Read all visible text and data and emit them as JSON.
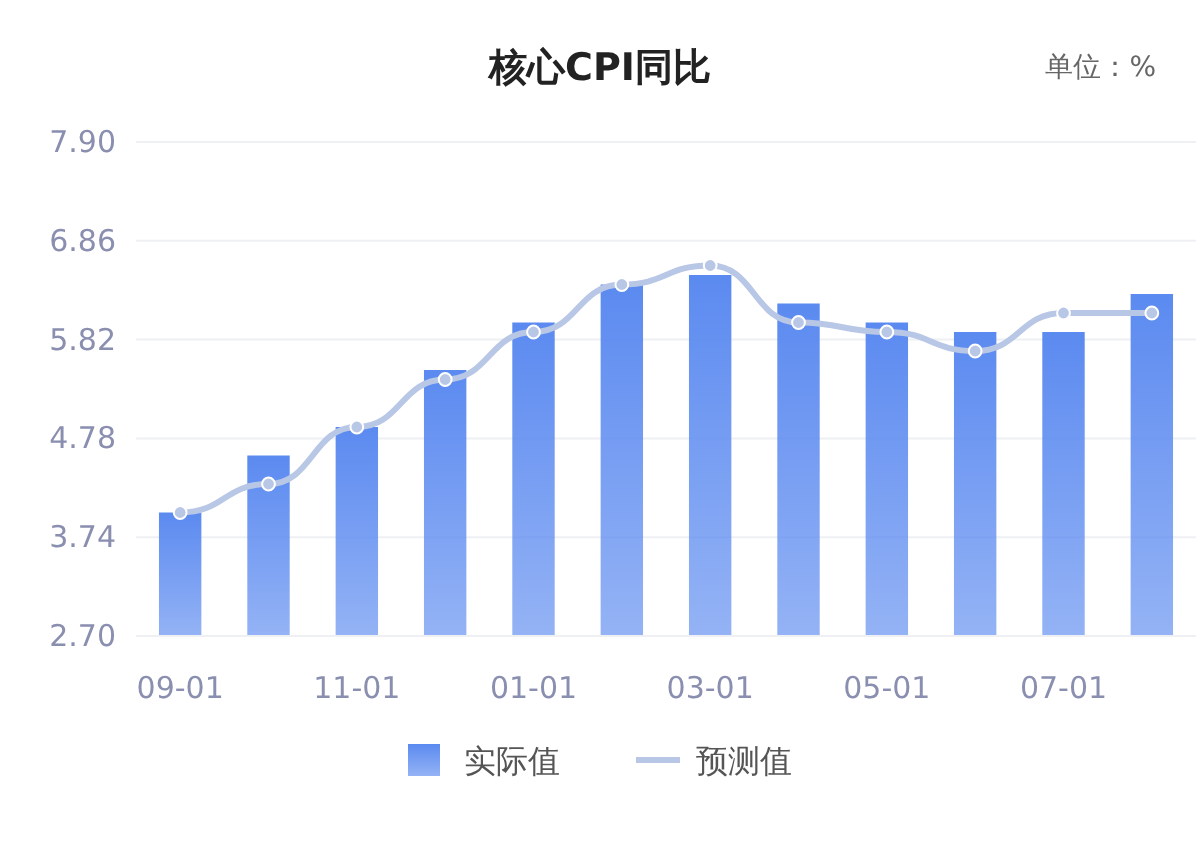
{
  "chart_data": {
    "type": "bar",
    "title": "核心CPI同比",
    "annotations": [
      "单位：%"
    ],
    "categories": [
      "09-01",
      null,
      "11-01",
      null,
      "01-01",
      null,
      "03-01",
      null,
      "05-01",
      null,
      "07-01",
      null
    ],
    "series": [
      {
        "name": "实际值",
        "color": "#5b8af0",
        "values": [
          4.0,
          4.6,
          4.9,
          5.5,
          6.0,
          6.4,
          6.5,
          6.2,
          6.0,
          5.9,
          5.9,
          6.3
        ]
      },
      {
        "name": "预测值",
        "type": "line",
        "color": "#b8c7e6",
        "marker": "circle",
        "values": [
          4.0,
          4.3,
          4.9,
          5.4,
          5.9,
          6.4,
          6.6,
          6.0,
          5.9,
          5.7,
          6.1,
          6.1
        ]
      }
    ],
    "ylim": [
      2.7,
      7.9
    ],
    "yticks": [
      {
        "value": 2.7,
        "label": "2.70"
      },
      {
        "value": 3.74,
        "label": "3.74"
      },
      {
        "value": 4.78,
        "label": "4.78"
      },
      {
        "value": 5.82,
        "label": "5.82"
      },
      {
        "value": 6.86,
        "label": "6.86"
      },
      {
        "value": 7.9,
        "label": "7.90"
      }
    ],
    "grid": "y",
    "legend": "bottom"
  }
}
